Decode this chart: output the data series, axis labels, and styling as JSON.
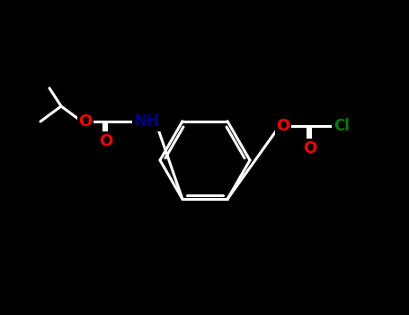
{
  "bg_color": "#000000",
  "fig_width": 4.55,
  "fig_height": 3.5,
  "dpi": 100,
  "colors": {
    "bond": "#ffffff",
    "O": "#ff0000",
    "N": "#00008b",
    "Cl": "#008000",
    "C": "#d3d3d3"
  },
  "lw": 2.2,
  "font_size": 13
}
